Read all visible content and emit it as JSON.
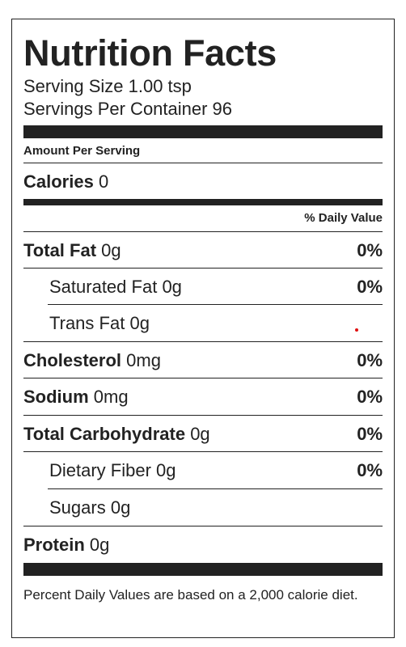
{
  "title": "Nutrition Facts",
  "serving_size": "Serving Size 1.00 tsp",
  "servings_per_container": "Servings Per Container 96",
  "amount_per_serving": "Amount Per Serving",
  "calories": {
    "label": "Calories",
    "value": "0"
  },
  "daily_value_header": "% Daily Value",
  "nutrients": [
    {
      "label": "Total Fat",
      "amount": "0g",
      "pct": "0%"
    },
    {
      "label": "Saturated Fat",
      "amount": "0g",
      "pct": "0%"
    },
    {
      "label": "Trans Fat",
      "amount": "0g",
      "pct": ""
    },
    {
      "label": "Cholesterol",
      "amount": "0mg",
      "pct": "0%"
    },
    {
      "label": "Sodium",
      "amount": "0mg",
      "pct": "0%"
    },
    {
      "label": "Total Carbohydrate",
      "amount": "0g",
      "pct": "0%"
    },
    {
      "label": "Dietary Fiber",
      "amount": "0g",
      "pct": "0%"
    },
    {
      "label": "Sugars",
      "amount": "0g",
      "pct": ""
    },
    {
      "label": "Protein",
      "amount": "0g",
      "pct": ""
    }
  ],
  "footnote": "Percent Daily Values are based on a 2,000 calorie diet.",
  "colors": {
    "text": "#222222",
    "marker": "#e01010"
  }
}
